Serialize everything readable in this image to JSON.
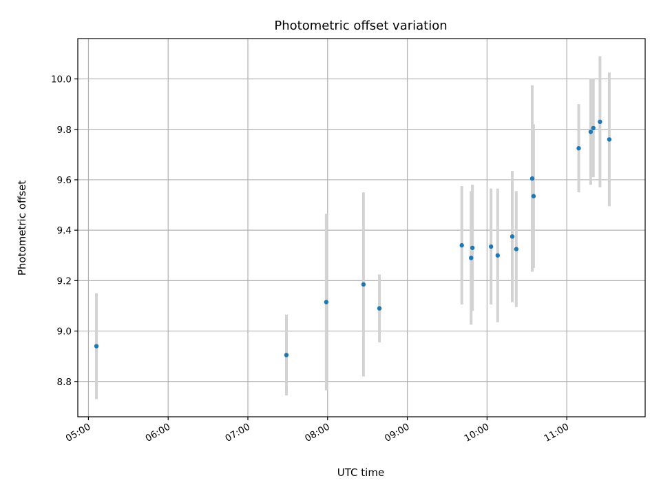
{
  "chart_data": {
    "type": "scatter",
    "title": "Photometric offset variation",
    "xlabel": "UTC time",
    "ylabel": "Photometric offset",
    "x_ticks": [
      "05:00",
      "06:00",
      "07:00",
      "08:00",
      "09:00",
      "10:00",
      "11:00"
    ],
    "y_ticks": [
      "8.8",
      "9.0",
      "9.2",
      "9.4",
      "9.6",
      "9.8",
      "10.0"
    ],
    "xlim": [
      "04:52",
      "11:59"
    ],
    "ylim": [
      8.66,
      10.16
    ],
    "grid": true,
    "marker_color": "#1f77b4",
    "errorbar_color": "#d3d3d3",
    "points": [
      {
        "x": "05:06",
        "y": 8.94,
        "yerr": 0.21
      },
      {
        "x": "07:29",
        "y": 8.905,
        "yerr": 0.16
      },
      {
        "x": "07:59",
        "y": 9.115,
        "yerr": 0.35
      },
      {
        "x": "08:27",
        "y": 9.185,
        "yerr": 0.365
      },
      {
        "x": "08:39",
        "y": 9.09,
        "yerr": 0.135
      },
      {
        "x": "09:41",
        "y": 9.34,
        "yerr": 0.235
      },
      {
        "x": "09:48",
        "y": 9.29,
        "yerr": 0.265
      },
      {
        "x": "09:49",
        "y": 9.33,
        "yerr": 0.25
      },
      {
        "x": "10:03",
        "y": 9.335,
        "yerr": 0.23
      },
      {
        "x": "10:08",
        "y": 9.3,
        "yerr": 0.265
      },
      {
        "x": "10:19",
        "y": 9.375,
        "yerr": 0.26
      },
      {
        "x": "10:22",
        "y": 9.325,
        "yerr": 0.23
      },
      {
        "x": "10:34",
        "y": 9.605,
        "yerr": 0.37
      },
      {
        "x": "10:35",
        "y": 9.535,
        "yerr": 0.285
      },
      {
        "x": "11:09",
        "y": 9.725,
        "yerr": 0.175
      },
      {
        "x": "11:18",
        "y": 9.79,
        "yerr": 0.21
      },
      {
        "x": "11:20",
        "y": 9.805,
        "yerr": 0.195
      },
      {
        "x": "11:25",
        "y": 9.83,
        "yerr": 0.26
      },
      {
        "x": "11:32",
        "y": 9.76,
        "yerr": 0.265
      }
    ]
  }
}
